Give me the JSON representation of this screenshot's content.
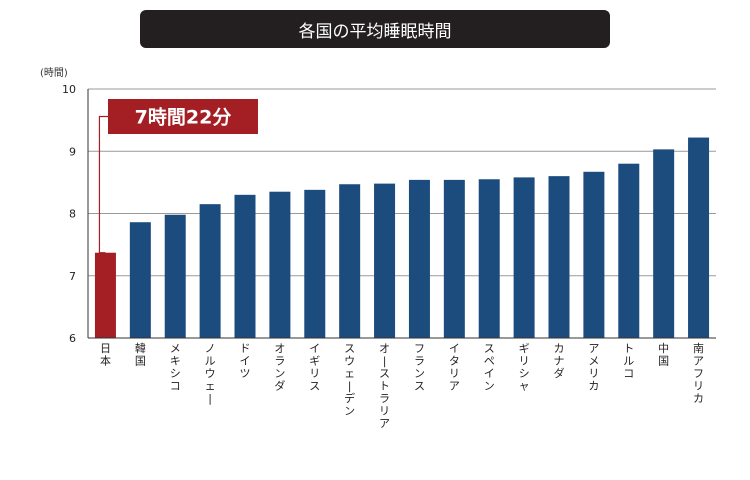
{
  "header": {
    "title": "各国の平均睡眠時間"
  },
  "chart_data": {
    "type": "bar",
    "title": "各国の平均睡眠時間",
    "ylabel": "(時間)",
    "xlabel": "",
    "ylim": [
      6,
      10
    ],
    "yticks": [
      6,
      7,
      8,
      9,
      10
    ],
    "grid": true,
    "categories": [
      "日本",
      "韓国",
      "メキシコ",
      "ノルウェー",
      "ドイツ",
      "オランダ",
      "イギリス",
      "スウェーデン",
      "オーストラリア",
      "フランス",
      "イタリア",
      "スペイン",
      "ギリシャ",
      "カナダ",
      "アメリカ",
      "トルコ",
      "中国",
      "南アフリカ"
    ],
    "values": [
      7.37,
      7.86,
      7.98,
      8.15,
      8.3,
      8.35,
      8.38,
      8.47,
      8.48,
      8.54,
      8.54,
      8.55,
      8.58,
      8.6,
      8.67,
      8.8,
      9.03,
      9.22
    ],
    "highlight_index": 0,
    "annotation": "7時間22分",
    "colors": {
      "bar": "#1b4c7d",
      "highlight": "#a31f24",
      "grid": "#9a9a9a",
      "axis": "#333333"
    }
  }
}
